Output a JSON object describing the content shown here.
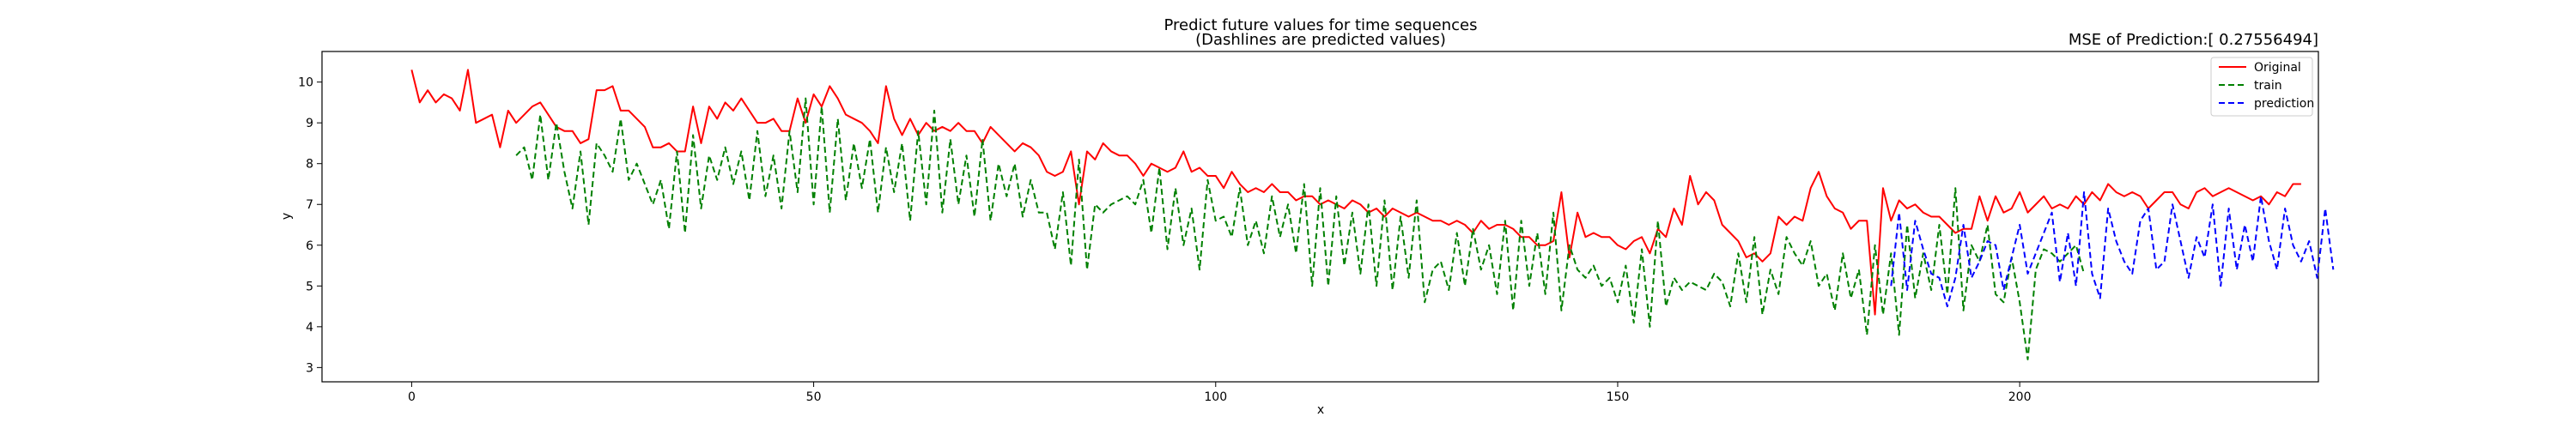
{
  "chart_data": {
    "type": "line",
    "title": "Predict future values for time sequences",
    "subtitle": "(Dashlines are predicted values)",
    "mse_text": "MSE of Prediction:[ 0.27556494]",
    "xlabel": "x",
    "ylabel": "y",
    "xlim": [
      -11.15,
      237.15
    ],
    "ylim": [
      2.65,
      10.75
    ],
    "xticks": [
      0,
      50,
      100,
      150,
      200
    ],
    "yticks": [
      3,
      4,
      5,
      6,
      7,
      8,
      9,
      10
    ],
    "legend_position": "upper right",
    "grid": false,
    "series": [
      {
        "name": "Original",
        "color": "#ff0000",
        "dash": false,
        "x_start": 0,
        "values": [
          10.3,
          9.5,
          9.8,
          9.5,
          9.7,
          9.6,
          9.3,
          10.3,
          9.0,
          9.1,
          9.2,
          8.4,
          9.3,
          9.0,
          9.2,
          9.4,
          9.5,
          9.2,
          8.9,
          8.8,
          8.8,
          8.5,
          8.6,
          9.8,
          9.8,
          9.9,
          9.3,
          9.3,
          9.1,
          8.9,
          8.4,
          8.4,
          8.5,
          8.3,
          8.3,
          9.4,
          8.5,
          9.4,
          9.1,
          9.5,
          9.3,
          9.6,
          9.3,
          9.0,
          9.0,
          9.1,
          8.8,
          8.8,
          9.6,
          9.0,
          9.7,
          9.4,
          9.9,
          9.6,
          9.2,
          9.1,
          9.0,
          8.8,
          8.5,
          9.9,
          9.1,
          8.7,
          9.1,
          8.7,
          9.0,
          8.8,
          8.9,
          8.8,
          9.0,
          8.8,
          8.8,
          8.5,
          8.9,
          8.7,
          8.5,
          8.3,
          8.5,
          8.4,
          8.2,
          7.8,
          7.7,
          7.8,
          8.3,
          7.0,
          8.3,
          8.1,
          8.5,
          8.3,
          8.2,
          8.2,
          8.0,
          7.7,
          8.0,
          7.9,
          7.8,
          7.9,
          8.3,
          7.8,
          7.9,
          7.7,
          7.7,
          7.4,
          7.8,
          7.5,
          7.3,
          7.4,
          7.3,
          7.5,
          7.3,
          7.3,
          7.1,
          7.2,
          7.2,
          7.0,
          7.1,
          7.0,
          6.9,
          7.1,
          7.0,
          6.8,
          6.9,
          6.7,
          6.9,
          6.8,
          6.7,
          6.8,
          6.7,
          6.6,
          6.6,
          6.5,
          6.6,
          6.5,
          6.3,
          6.6,
          6.4,
          6.5,
          6.5,
          6.4,
          6.2,
          6.2,
          6.0,
          6.0,
          6.1,
          7.3,
          5.7,
          6.8,
          6.2,
          6.3,
          6.2,
          6.2,
          6.0,
          5.9,
          6.1,
          6.2,
          5.8,
          6.4,
          6.2,
          6.9,
          6.5,
          7.7,
          7.0,
          7.3,
          7.1,
          6.5,
          6.3,
          6.1,
          5.7,
          5.8,
          5.6,
          5.8,
          6.7,
          6.5,
          6.7,
          6.6,
          7.4,
          7.8,
          7.2,
          6.9,
          6.8,
          6.4,
          6.6,
          6.6,
          4.3,
          7.4,
          6.6,
          7.1,
          6.9,
          7.0,
          6.8,
          6.7,
          6.7,
          6.5,
          6.3,
          6.4,
          6.4,
          7.2,
          6.6,
          7.2,
          6.8,
          6.9,
          7.3,
          6.8,
          7.0,
          7.2,
          6.9,
          7.0,
          6.9,
          7.2,
          7.0,
          7.3,
          7.1,
          7.5,
          7.3,
          7.2,
          7.3,
          7.2,
          6.9,
          7.1,
          7.3,
          7.3,
          7.0,
          6.9,
          7.3,
          7.4,
          7.2,
          7.3,
          7.4,
          7.3,
          7.2,
          7.1,
          7.2,
          7.0,
          7.3,
          7.2,
          7.5,
          7.5
        ]
      },
      {
        "name": "train",
        "color": "#008000",
        "dash": true,
        "x_start": 13,
        "values": [
          8.2,
          8.4,
          7.6,
          9.2,
          7.6,
          9.0,
          7.8,
          6.9,
          8.3,
          6.5,
          8.5,
          8.2,
          7.8,
          9.1,
          7.6,
          8.0,
          7.5,
          7.0,
          7.6,
          6.4,
          8.3,
          6.3,
          8.7,
          6.9,
          8.2,
          7.6,
          8.4,
          7.5,
          8.3,
          7.1,
          8.8,
          7.2,
          8.2,
          6.9,
          8.8,
          7.3,
          9.6,
          7.0,
          9.4,
          6.8,
          9.1,
          7.1,
          8.5,
          7.4,
          8.6,
          6.8,
          8.4,
          7.3,
          8.5,
          6.6,
          8.8,
          7.0,
          9.3,
          6.8,
          8.6,
          7.0,
          8.2,
          6.7,
          8.6,
          6.6,
          8.0,
          7.2,
          8.0,
          6.7,
          7.6,
          6.8,
          6.8,
          5.9,
          7.3,
          5.5,
          8.1,
          5.4,
          7.0,
          6.8,
          7.0,
          7.1,
          7.2,
          7.0,
          7.6,
          6.3,
          7.9,
          5.9,
          7.4,
          6.0,
          6.9,
          5.4,
          7.6,
          6.6,
          6.7,
          6.2,
          7.4,
          6.0,
          6.6,
          5.8,
          7.2,
          6.2,
          7.0,
          5.8,
          7.5,
          5.0,
          7.4,
          5.0,
          7.2,
          5.5,
          6.8,
          5.3,
          7.0,
          5.0,
          7.1,
          4.9,
          6.7,
          5.2,
          7.1,
          4.6,
          5.4,
          5.6,
          4.9,
          6.3,
          5.0,
          6.4,
          5.4,
          6.0,
          4.8,
          6.6,
          4.4,
          6.6,
          5.0,
          6.3,
          4.8,
          6.8,
          4.4,
          6.0,
          5.4,
          5.2,
          5.5,
          5.0,
          5.2,
          4.6,
          5.5,
          4.1,
          5.9,
          4.0,
          6.6,
          4.5,
          5.2,
          4.9,
          5.1,
          5.0,
          4.9,
          5.3,
          5.1,
          4.5,
          5.8,
          4.6,
          6.2,
          4.3,
          5.4,
          4.8,
          6.2,
          5.8,
          5.5,
          6.1,
          5.0,
          5.3,
          4.4,
          5.8,
          4.7,
          5.4,
          3.8,
          6.0,
          4.3,
          5.8,
          3.8,
          6.5,
          4.7,
          5.8,
          4.9,
          6.5,
          4.8,
          7.4,
          4.4,
          6.0,
          5.6,
          6.5,
          4.8,
          4.6,
          5.7,
          4.6,
          3.2,
          5.4,
          5.9,
          5.8,
          5.6,
          5.8,
          6.0,
          5.3
        ]
      },
      {
        "name": "prediction",
        "color": "#0000ff",
        "dash": true,
        "x_start": 184,
        "values": [
          5.0,
          6.8,
          4.9,
          6.6,
          5.9,
          5.3,
          5.2,
          4.5,
          5.2,
          6.5,
          5.2,
          5.6,
          6.1,
          6.0,
          4.9,
          5.7,
          6.5,
          5.3,
          5.8,
          6.3,
          6.8,
          5.1,
          6.3,
          5.0,
          7.3,
          5.3,
          4.7,
          6.9,
          6.1,
          5.6,
          5.3,
          6.6,
          6.9,
          5.4,
          5.6,
          7.0,
          6.1,
          5.2,
          6.2,
          5.7,
          7.0,
          5.0,
          6.9,
          5.4,
          6.5,
          5.6,
          7.2,
          6.1,
          5.4,
          6.9,
          6.0,
          5.6,
          6.1,
          5.2,
          6.9,
          5.4
        ]
      }
    ]
  }
}
